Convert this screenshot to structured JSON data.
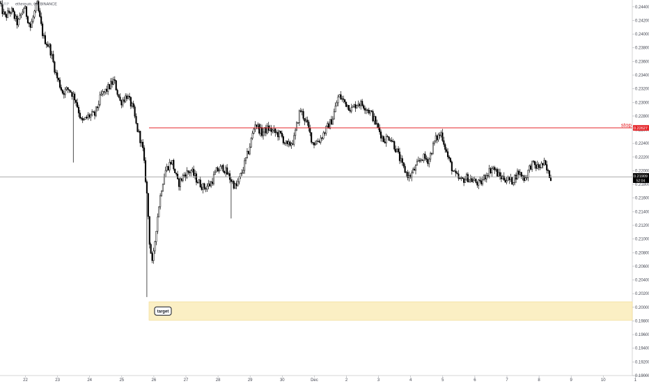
{
  "header": {
    "symbol_text": "XRP",
    "pair_text": "ethereum, 60, BINANCE"
  },
  "colors": {
    "candle_up_fill": "#ffffff",
    "candle_down_fill": "#000000",
    "candle_wick": "#000000",
    "stop_line": "#e5262a",
    "target_zone_fill": "#fbefc4",
    "target_zone_border": "#f2d98a",
    "price_line": "#9e9e9e",
    "axis_text": "#434651"
  },
  "chart_data": {
    "type": "candlestick",
    "y_axis": {
      "side": "right",
      "min": 0.19,
      "max": 0.245,
      "tick_labels": [
        "0.24400",
        "0.24200",
        "0.24000",
        "0.23800",
        "0.23600",
        "0.23400",
        "0.23200",
        "0.23000",
        "0.22800",
        "0.22600",
        "0.22400",
        "0.22200",
        "0.22000",
        "0.21800",
        "0.21600",
        "0.21400",
        "0.21200",
        "0.21000",
        "0.20800",
        "0.20600",
        "0.20400",
        "0.20200",
        "0.20000",
        "0.19800",
        "0.19600",
        "0.19400",
        "0.19200",
        "0.19000"
      ]
    },
    "x_axis": {
      "tick_labels": [
        "22",
        "23",
        "24",
        "25",
        "26",
        "27",
        "28",
        "29",
        "30",
        "Dec",
        "2",
        "3",
        "4",
        "5",
        "6",
        "7",
        "8",
        "9",
        "10",
        "1"
      ]
    },
    "current_price": {
      "value": 0.2191,
      "label": "0.21909",
      "countdown": "52:04"
    },
    "stop": {
      "label": "stop",
      "value": 0.22627,
      "price_label": "0.22627"
    },
    "target_zone": {
      "label": "target",
      "top": 0.2008,
      "bottom": 0.1981,
      "start_day": 3.85
    },
    "x_range": [
      -0.8,
      19.2
    ],
    "candle_anchors": [
      [
        -0.8,
        0.2448
      ],
      [
        -0.6,
        0.2425
      ],
      [
        -0.4,
        0.2435
      ],
      [
        -0.2,
        0.2415
      ],
      [
        0.0,
        0.244
      ],
      [
        0.2,
        0.241
      ],
      [
        0.4,
        0.2445
      ],
      [
        0.6,
        0.2395
      ],
      [
        0.8,
        0.238
      ],
      [
        1.0,
        0.234
      ],
      [
        1.2,
        0.2315
      ],
      [
        1.4,
        0.232
      ],
      [
        1.6,
        0.2305
      ],
      [
        1.8,
        0.227
      ],
      [
        2.0,
        0.228
      ],
      [
        2.2,
        0.2282
      ],
      [
        2.4,
        0.231
      ],
      [
        2.6,
        0.232
      ],
      [
        2.8,
        0.2332
      ],
      [
        3.0,
        0.23
      ],
      [
        3.2,
        0.231
      ],
      [
        3.4,
        0.229
      ],
      [
        3.5,
        0.2265
      ],
      [
        3.6,
        0.225
      ],
      [
        3.7,
        0.223
      ],
      [
        3.8,
        0.218
      ],
      [
        3.85,
        0.215
      ],
      [
        3.9,
        0.21
      ],
      [
        4.0,
        0.206
      ],
      [
        4.1,
        0.211
      ],
      [
        4.2,
        0.215
      ],
      [
        4.3,
        0.218
      ],
      [
        4.4,
        0.22
      ],
      [
        4.6,
        0.2215
      ],
      [
        4.8,
        0.218
      ],
      [
        5.0,
        0.2195
      ],
      [
        5.2,
        0.22
      ],
      [
        5.4,
        0.2185
      ],
      [
        5.6,
        0.2175
      ],
      [
        5.8,
        0.218
      ],
      [
        6.0,
        0.22
      ],
      [
        6.2,
        0.2205
      ],
      [
        6.4,
        0.219
      ],
      [
        6.6,
        0.2175
      ],
      [
        6.8,
        0.22
      ],
      [
        7.0,
        0.223
      ],
      [
        7.2,
        0.227
      ],
      [
        7.4,
        0.2255
      ],
      [
        7.6,
        0.2262
      ],
      [
        7.8,
        0.2256
      ],
      [
        8.0,
        0.2252
      ],
      [
        8.2,
        0.2235
      ],
      [
        8.4,
        0.2245
      ],
      [
        8.6,
        0.229
      ],
      [
        8.8,
        0.227
      ],
      [
        9.0,
        0.224
      ],
      [
        9.2,
        0.2245
      ],
      [
        9.4,
        0.226
      ],
      [
        9.6,
        0.2275
      ],
      [
        9.8,
        0.231
      ],
      [
        10.0,
        0.23
      ],
      [
        10.2,
        0.229
      ],
      [
        10.4,
        0.23
      ],
      [
        10.6,
        0.2295
      ],
      [
        10.8,
        0.2285
      ],
      [
        11.0,
        0.2265
      ],
      [
        11.2,
        0.2245
      ],
      [
        11.4,
        0.225
      ],
      [
        11.6,
        0.223
      ],
      [
        11.8,
        0.2205
      ],
      [
        12.0,
        0.219
      ],
      [
        12.2,
        0.2205
      ],
      [
        12.4,
        0.222
      ],
      [
        12.6,
        0.2215
      ],
      [
        12.8,
        0.2245
      ],
      [
        13.0,
        0.2255
      ],
      [
        13.2,
        0.222
      ],
      [
        13.4,
        0.2195
      ],
      [
        13.6,
        0.2185
      ],
      [
        13.8,
        0.219
      ],
      [
        14.0,
        0.2185
      ],
      [
        14.2,
        0.218
      ],
      [
        14.4,
        0.2195
      ],
      [
        14.6,
        0.2205
      ],
      [
        14.8,
        0.2192
      ],
      [
        15.0,
        0.2188
      ],
      [
        15.2,
        0.2185
      ],
      [
        15.4,
        0.2198
      ],
      [
        15.6,
        0.2188
      ],
      [
        15.8,
        0.221
      ],
      [
        16.0,
        0.2205
      ],
      [
        16.2,
        0.221
      ],
      [
        16.3,
        0.2198
      ],
      [
        16.4,
        0.2191
      ]
    ],
    "extreme_wicks": [
      {
        "day": 3.8,
        "low": 0.2015
      },
      {
        "day": 1.5,
        "low": 0.2212
      },
      {
        "day": 6.4,
        "low": 0.213
      }
    ]
  }
}
